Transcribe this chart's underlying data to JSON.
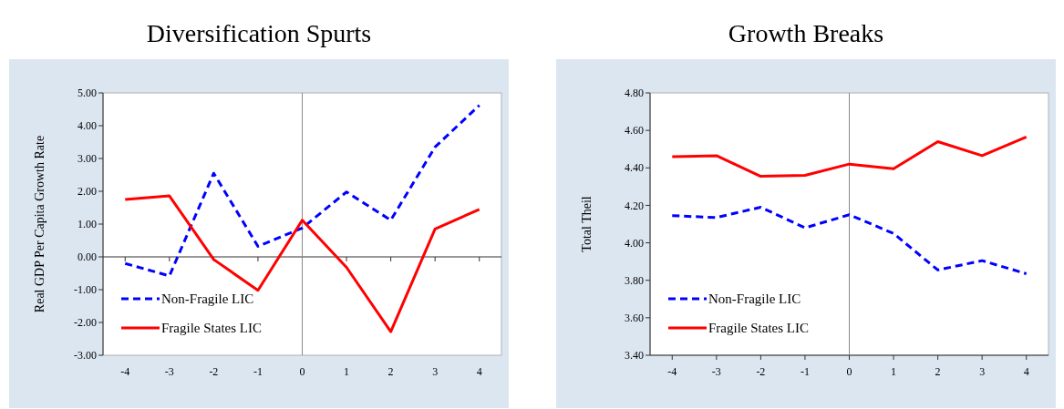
{
  "chart_data": [
    {
      "type": "line",
      "title": "Diversification Spurts",
      "ylabel": "Real GDP Per Capita Growth Rate",
      "x": [
        -4,
        -3,
        -2,
        -1,
        0,
        1,
        2,
        3,
        4
      ],
      "xlim": [
        -4.5,
        4.5
      ],
      "xticks": [
        -4,
        -3,
        -2,
        -1,
        0,
        1,
        2,
        3,
        4
      ],
      "ylim": [
        -3,
        5
      ],
      "yticks": [
        {
          "value": -3,
          "label": "-3.00"
        },
        {
          "value": -2,
          "label": "-2.00"
        },
        {
          "value": -1,
          "label": "-1.00"
        },
        {
          "value": 0,
          "label": "0.00"
        },
        {
          "value": 1,
          "label": "1.00"
        },
        {
          "value": 2,
          "label": "2.00"
        },
        {
          "value": 3,
          "label": "3.00"
        },
        {
          "value": 4,
          "label": "4.00"
        },
        {
          "value": 5,
          "label": "5.00"
        }
      ],
      "grid": false,
      "legend": "bottom left",
      "marker": "none",
      "ref_lines": [
        {
          "axis": "x",
          "value": 0,
          "color": "#888888"
        }
      ],
      "series": [
        {
          "name": "Non-Fragile LIC",
          "color": "#0000ff",
          "line_style": "dashed",
          "values": [
            -0.2,
            -0.58,
            2.55,
            0.32,
            0.88,
            1.98,
            1.12,
            3.35,
            4.62
          ]
        },
        {
          "name": "Fragile States LIC",
          "color": "#ff0000",
          "line_style": "solid",
          "values": [
            1.75,
            1.86,
            -0.08,
            -1.02,
            1.12,
            -0.32,
            -2.28,
            0.85,
            1.45
          ]
        }
      ]
    },
    {
      "type": "line",
      "title": "Growth Breaks",
      "ylabel": "Total Theil",
      "x": [
        -4,
        -3,
        -2,
        -1,
        0,
        1,
        2,
        3,
        4
      ],
      "xlim": [
        -4.5,
        4.5
      ],
      "xticks": [
        -4,
        -3,
        -2,
        -1,
        0,
        1,
        2,
        3,
        4
      ],
      "ylim": [
        3.4,
        4.8
      ],
      "yticks": [
        {
          "value": 3.4,
          "label": "3.40"
        },
        {
          "value": 3.6,
          "label": "3.60"
        },
        {
          "value": 3.8,
          "label": "3.80"
        },
        {
          "value": 4.0,
          "label": "4.00"
        },
        {
          "value": 4.2,
          "label": "4.20"
        },
        {
          "value": 4.4,
          "label": "4.40"
        },
        {
          "value": 4.6,
          "label": "4.60"
        },
        {
          "value": 4.8,
          "label": "4.80"
        }
      ],
      "grid": false,
      "legend": "bottom left",
      "marker": "none",
      "ref_lines": [
        {
          "axis": "x",
          "value": 0,
          "color": "#888888"
        }
      ],
      "series": [
        {
          "name": "Non-Fragile LIC",
          "color": "#0000ff",
          "line_style": "dashed",
          "values": [
            4.145,
            4.135,
            4.19,
            4.08,
            4.15,
            4.05,
            3.855,
            3.905,
            3.835
          ]
        },
        {
          "name": "Fragile States LIC",
          "color": "#ff0000",
          "line_style": "solid",
          "values": [
            4.46,
            4.465,
            4.355,
            4.36,
            4.42,
            4.395,
            4.54,
            4.465,
            4.565
          ]
        }
      ]
    }
  ]
}
